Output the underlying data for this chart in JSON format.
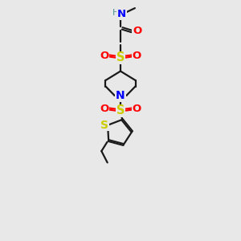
{
  "bg_color": "#e8e8e8",
  "bond_color": "#1a1a1a",
  "N_color": "#0000ff",
  "O_color": "#ff0000",
  "S_color": "#cccc00",
  "H_color": "#4a9090",
  "figsize": [
    3.0,
    3.0
  ],
  "dpi": 100,
  "xlim": [
    0,
    10
  ],
  "ylim": [
    0,
    14
  ]
}
